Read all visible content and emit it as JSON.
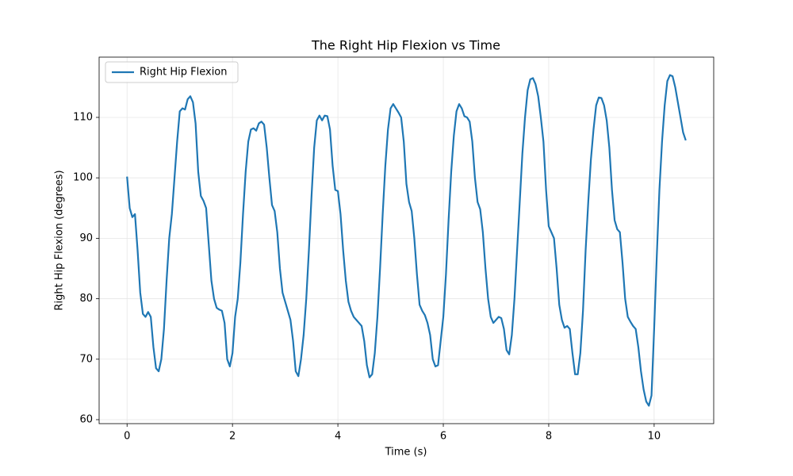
{
  "chart_data": {
    "type": "line",
    "title": "The Right Hip Flexion vs Time",
    "x_label": "Time (s)",
    "y_label": "Right Hip Flexion (degrees)",
    "xlim": [
      -0.53,
      11.13
    ],
    "ylim": [
      59.34,
      119.97
    ],
    "xticks": [
      0,
      2,
      4,
      6,
      8,
      10
    ],
    "yticks": [
      60,
      70,
      80,
      90,
      100,
      110
    ],
    "grid": true,
    "legend": "upper left",
    "x": [
      0,
      0.05,
      0.1,
      0.15,
      0.2,
      0.25,
      0.3,
      0.35,
      0.4,
      0.45,
      0.5,
      0.55,
      0.6,
      0.65,
      0.7,
      0.75,
      0.8,
      0.85,
      0.9,
      0.95,
      1,
      1.05,
      1.1,
      1.15,
      1.2,
      1.25,
      1.3,
      1.35,
      1.4,
      1.45,
      1.5,
      1.55,
      1.6,
      1.65,
      1.7,
      1.75,
      1.8,
      1.85,
      1.9,
      1.95,
      2,
      2.05,
      2.1,
      2.15,
      2.2,
      2.25,
      2.3,
      2.35,
      2.4,
      2.45,
      2.5,
      2.55,
      2.6,
      2.65,
      2.7,
      2.75,
      2.8,
      2.85,
      2.9,
      2.95,
      3,
      3.05,
      3.1,
      3.15,
      3.2,
      3.25,
      3.3,
      3.35,
      3.4,
      3.45,
      3.5,
      3.55,
      3.6,
      3.65,
      3.7,
      3.75,
      3.8,
      3.85,
      3.9,
      3.95,
      4,
      4.05,
      4.1,
      4.15,
      4.2,
      4.25,
      4.3,
      4.35,
      4.4,
      4.45,
      4.5,
      4.55,
      4.6,
      4.65,
      4.7,
      4.75,
      4.8,
      4.85,
      4.9,
      4.95,
      5,
      5.05,
      5.1,
      5.15,
      5.2,
      5.25,
      5.3,
      5.35,
      5.4,
      5.45,
      5.5,
      5.55,
      5.6,
      5.65,
      5.7,
      5.75,
      5.8,
      5.85,
      5.9,
      5.95,
      6,
      6.05,
      6.1,
      6.15,
      6.2,
      6.25,
      6.3,
      6.35,
      6.4,
      6.45,
      6.5,
      6.55,
      6.6,
      6.65,
      6.7,
      6.75,
      6.8,
      6.85,
      6.9,
      6.95,
      7,
      7.05,
      7.1,
      7.15,
      7.2,
      7.25,
      7.3,
      7.35,
      7.4,
      7.45,
      7.5,
      7.55,
      7.6,
      7.65,
      7.7,
      7.75,
      7.8,
      7.85,
      7.9,
      7.95,
      8,
      8.05,
      8.1,
      8.15,
      8.2,
      8.25,
      8.3,
      8.35,
      8.4,
      8.45,
      8.5,
      8.55,
      8.6,
      8.65,
      8.7,
      8.75,
      8.8,
      8.85,
      8.9,
      8.95,
      9,
      9.05,
      9.1,
      9.15,
      9.2,
      9.25,
      9.3,
      9.35,
      9.4,
      9.45,
      9.5,
      9.55,
      9.6,
      9.65,
      9.7,
      9.75,
      9.8,
      9.85,
      9.9,
      9.95,
      10,
      10.05,
      10.1,
      10.15,
      10.2,
      10.25,
      10.3,
      10.35,
      10.4,
      10.45,
      10.5,
      10.55,
      10.6
    ],
    "series": [
      {
        "name": "Right Hip Flexion",
        "color": "#1f77b4",
        "values": [
          100.2,
          95,
          93.5,
          94,
          88,
          81,
          77.5,
          77,
          77.8,
          77,
          72,
          68.5,
          68,
          70,
          75,
          83,
          90,
          94,
          100,
          106,
          111,
          111.5,
          111.3,
          113,
          113.5,
          112.5,
          109,
          101,
          97,
          96.2,
          95,
          89,
          83,
          80,
          78.5,
          78.2,
          78,
          76,
          70,
          68.8,
          71,
          77,
          80,
          86,
          94,
          101,
          106,
          108,
          108.2,
          107.8,
          109,
          109.3,
          108.8,
          105,
          100,
          95.5,
          94.5,
          91,
          85,
          81,
          79.5,
          78,
          76.5,
          73,
          68,
          67.2,
          70,
          74,
          80,
          88,
          97,
          105,
          109.5,
          110.3,
          109.5,
          110.3,
          110.2,
          108,
          102,
          98,
          97.8,
          94,
          88,
          83,
          79.5,
          78,
          77,
          76.5,
          76,
          75.5,
          73,
          69,
          67,
          67.5,
          71,
          77,
          85,
          94,
          102,
          108,
          111.5,
          112.2,
          111.5,
          110.8,
          110,
          106,
          99,
          96,
          94.5,
          90,
          84,
          79,
          78,
          77.3,
          76,
          74,
          70,
          68.8,
          69,
          73,
          77,
          84,
          93,
          101,
          107,
          111,
          112.2,
          111.5,
          110.2,
          110,
          109.3,
          106,
          100,
          96,
          94.8,
          91,
          85,
          80,
          77,
          76,
          76.5,
          77,
          76.8,
          75,
          71.5,
          70.8,
          74,
          80,
          88,
          96,
          104,
          110,
          114.5,
          116.3,
          116.5,
          115.5,
          113.5,
          110,
          106,
          98,
          92,
          91,
          90,
          85,
          79,
          76.5,
          75.2,
          75.5,
          75,
          71,
          67.5,
          67.5,
          71,
          78,
          88,
          96,
          103,
          108,
          112,
          113.3,
          113.2,
          112,
          109.5,
          105,
          98,
          93,
          91.5,
          91,
          86,
          80,
          77,
          76.2,
          75.5,
          75,
          72,
          68,
          65,
          63,
          62.3,
          64,
          75,
          87,
          98,
          106,
          112,
          116,
          117,
          116.8,
          115,
          112.5,
          110,
          107.5,
          106.2
        ]
      }
    ]
  }
}
